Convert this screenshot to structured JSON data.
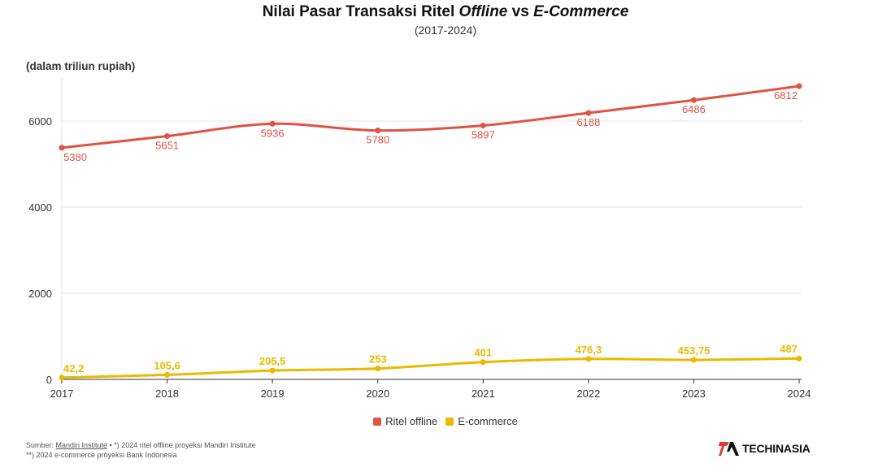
{
  "title": {
    "main": "Nilai Pasar Transaksi Ritel",
    "offline": "Offline",
    "vs": "vs",
    "ecom": "E-Commerce"
  },
  "subtitle": "(2017-2024)",
  "unit_label": "(dalam triliun rupiah)",
  "chart_data": {
    "type": "line",
    "title": "Nilai Pasar Transaksi Ritel Offline vs E-Commerce",
    "subtitle": "(2017-2024)",
    "xlabel": "",
    "ylabel": "(dalam triliun rupiah)",
    "x": [
      "2017",
      "2018",
      "2019",
      "2020",
      "2021",
      "2022",
      "2023",
      "2024"
    ],
    "ylim": [
      0,
      7000
    ],
    "yticks": [
      0,
      2000,
      4000,
      6000
    ],
    "grid": true,
    "legend_position": "bottom",
    "series": [
      {
        "name": "Ritel offline",
        "color": "#e05244",
        "values": [
          5380,
          5651,
          5936,
          5780,
          5897,
          6188,
          6486,
          6812
        ],
        "labels": [
          "5380",
          "5651",
          "5936",
          "5780",
          "5897",
          "6188",
          "6486",
          "6812"
        ]
      },
      {
        "name": "E-commerce",
        "color": "#e8ba00",
        "values": [
          42.2,
          105.6,
          205.5,
          253,
          401,
          476.3,
          453.75,
          487
        ],
        "labels": [
          "42,2",
          "105,6",
          "205,5",
          "253",
          "401",
          "476,3",
          "453,75",
          "487"
        ]
      }
    ]
  },
  "legend": {
    "offline": "Ritel offline",
    "ecommerce": "E-commerce"
  },
  "footer": {
    "source_prefix": "Sumber:",
    "source_link": "Mandiri Institute",
    "note1": " • *) 2024 ritel offline proyeksi Mandiri Institute",
    "note2": "**) 2024 e-commerce proyeksi Bank Indonesia"
  },
  "logo": {
    "text": "TECHINASIA"
  }
}
